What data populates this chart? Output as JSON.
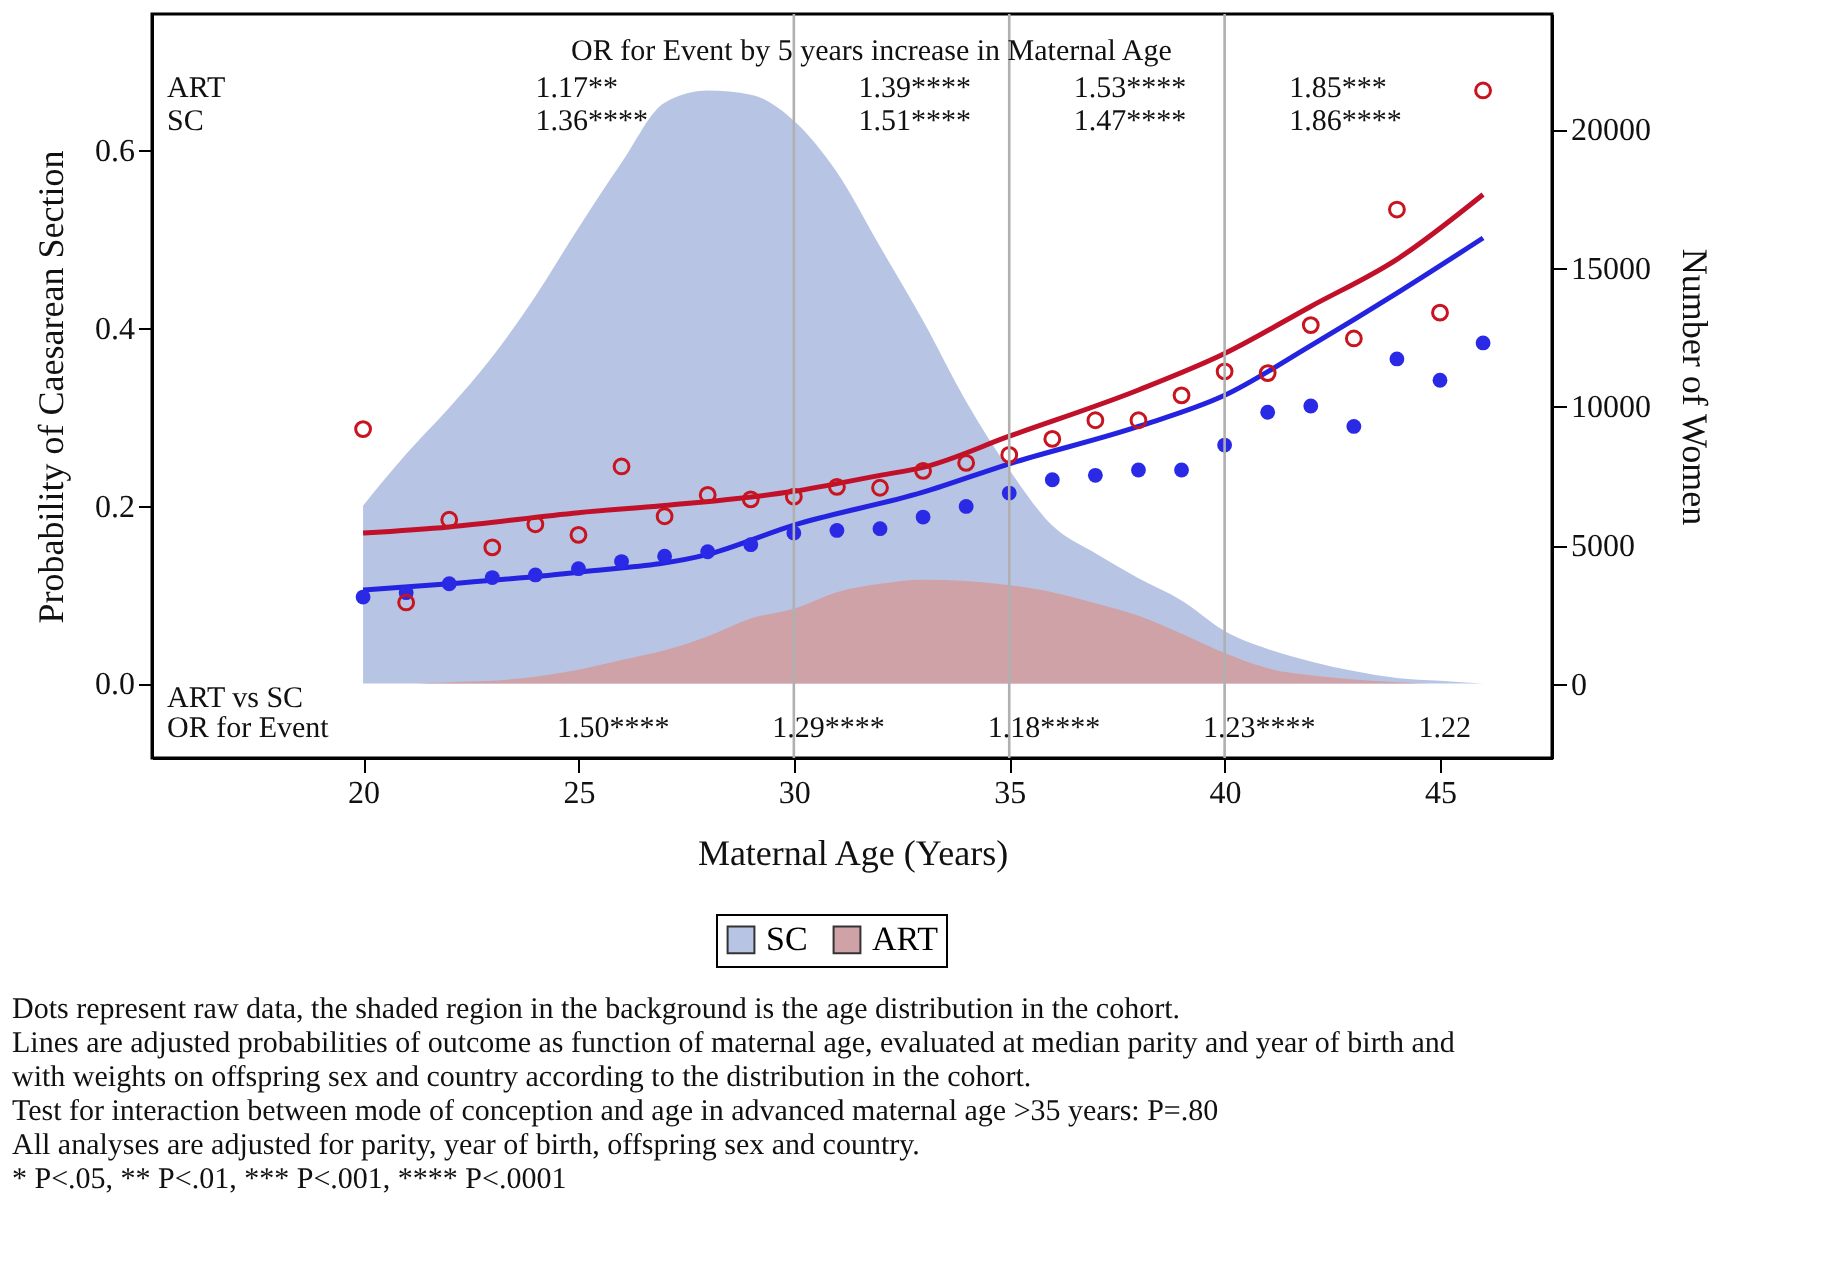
{
  "chart_data": {
    "type": "line",
    "xlabel": "Maternal Age (Years)",
    "ylabel": "Probability of Caesarean Section",
    "y2label": "Number of Women",
    "xlim": [
      15.1,
      47.6
    ],
    "xticks": [
      20,
      25,
      30,
      35,
      40,
      45
    ],
    "ylim": [
      -0.084,
      0.753
    ],
    "yticks": [
      {
        "value": 0,
        "label": "0.0"
      },
      0.2,
      0.4,
      0.6
    ],
    "y2lim": [
      -2685,
      24160
    ],
    "y2ticks": [
      0,
      {
        "value": 5000,
        "label": "5000"
      },
      {
        "value": 10000,
        "label": "10000"
      },
      {
        "value": 15000,
        "label": "15000"
      },
      {
        "value": 20000,
        "label": "20000"
      }
    ],
    "grid": false,
    "legend": "bottom",
    "ref_lines": [
      {
        "axis": "x",
        "value": 30,
        "color": "#b0b0b0"
      },
      {
        "axis": "x",
        "value": 35,
        "color": "#b0b0b0"
      },
      {
        "axis": "x",
        "value": 40,
        "color": "#b0b0b0"
      }
    ],
    "series": [
      {
        "name": "SC",
        "type": "area",
        "axis": "y2",
        "color": "#b7c4e3",
        "x": [
          20,
          21,
          22,
          23,
          24,
          25,
          26,
          27,
          28,
          29,
          30,
          31,
          32,
          33,
          34,
          35,
          36,
          37,
          38,
          39,
          40,
          41,
          42,
          43,
          44,
          45,
          46
        ],
        "values": [
          6420,
          8280,
          9950,
          11790,
          13980,
          16440,
          18790,
          20960,
          21400,
          21250,
          20310,
          18450,
          15770,
          13090,
          10180,
          7720,
          5700,
          4700,
          3800,
          3000,
          1900,
          1250,
          800,
          450,
          200,
          100,
          0
        ]
      },
      {
        "name": "ART",
        "type": "area",
        "axis": "y2",
        "color": "#cfa2a8",
        "x": [
          20,
          21,
          22,
          23,
          24,
          25,
          26,
          27,
          28,
          29,
          30,
          31,
          32,
          33,
          34,
          35,
          36,
          37,
          38,
          39,
          40,
          41,
          42,
          43,
          44,
          45,
          46
        ],
        "values": [
          0,
          0,
          50,
          100,
          250,
          500,
          850,
          1200,
          1700,
          2350,
          2700,
          3300,
          3600,
          3750,
          3700,
          3550,
          3300,
          2900,
          2450,
          1800,
          1100,
          550,
          300,
          150,
          50,
          0,
          0
        ]
      },
      {
        "color": "#2424e0",
        "x": [
          20,
          22,
          25,
          28,
          30,
          33,
          35,
          38,
          40,
          42,
          44,
          46
        ],
        "values": [
          0.105,
          0.112,
          0.125,
          0.145,
          0.178,
          0.215,
          0.247,
          0.289,
          0.324,
          0.38,
          0.439,
          0.501
        ]
      },
      {
        "color": "#c0102a",
        "x": [
          20,
          22,
          25,
          27,
          30,
          32,
          33,
          35,
          38,
          40,
          42,
          44,
          46
        ],
        "values": [
          0.169,
          0.176,
          0.192,
          0.2,
          0.216,
          0.234,
          0.243,
          0.278,
          0.33,
          0.371,
          0.424,
          0.477,
          0.55
        ]
      },
      {
        "type": "scatter",
        "marker": "circle",
        "color": "#2a2ae6",
        "x": [
          20,
          21,
          22,
          23,
          24,
          25,
          26,
          27,
          28,
          29,
          30,
          31,
          32,
          33,
          34,
          35,
          36,
          37,
          38,
          39,
          40,
          41,
          42,
          43,
          44,
          45,
          46
        ],
        "values": [
          0.097,
          0.102,
          0.112,
          0.119,
          0.122,
          0.129,
          0.137,
          0.143,
          0.148,
          0.156,
          0.169,
          0.172,
          0.174,
          0.187,
          0.199,
          0.214,
          0.229,
          0.234,
          0.24,
          0.24,
          0.268,
          0.305,
          0.312,
          0.289,
          0.365,
          0.341,
          0.383
        ]
      },
      {
        "type": "scatter",
        "marker": "circle",
        "color": "#c8141e",
        "x": [
          20,
          21,
          22,
          23,
          24,
          25,
          26,
          27,
          28,
          29,
          30,
          31,
          32,
          33,
          34,
          35,
          36,
          37,
          38,
          39,
          40,
          41,
          42,
          43,
          44,
          45,
          46
        ],
        "values": [
          0.286,
          0.091,
          0.184,
          0.153,
          0.179,
          0.167,
          0.244,
          0.188,
          0.212,
          0.207,
          0.21,
          0.221,
          0.22,
          0.239,
          0.248,
          0.257,
          0.275,
          0.296,
          0.296,
          0.324,
          0.351,
          0.349,
          0.403,
          0.388,
          0.533,
          0.417,
          0.667
        ]
      }
    ],
    "annotations": [
      "OR for Event by 5 years increase in Maternal Age",
      "ART",
      "SC",
      "1.17**",
      "1.36****",
      "1.39****",
      "1.51****",
      "1.53****",
      "1.47****",
      "1.85***",
      "1.86****",
      "ART vs SC",
      "OR for Event",
      "1.50****",
      "1.29****",
      "1.18****",
      "1.23****",
      "1.22",
      "Dots represent raw data, the shaded region in the background is the age distribution in the cohort.",
      "Lines are adjusted probabilities of outcome as function of maternal age, evaluated at median parity and year of birth and with weights on offspring sex and country according to the distribution in the cohort.",
      "Test for interaction between mode of conception and age in advanced maternal age >35 years: P=.80",
      "All analyses are adjusted for parity, year of birth, offspring sex and country.",
      "* P<.05, ** P<.01, *** P<.001, **** P<.0001"
    ]
  }
}
